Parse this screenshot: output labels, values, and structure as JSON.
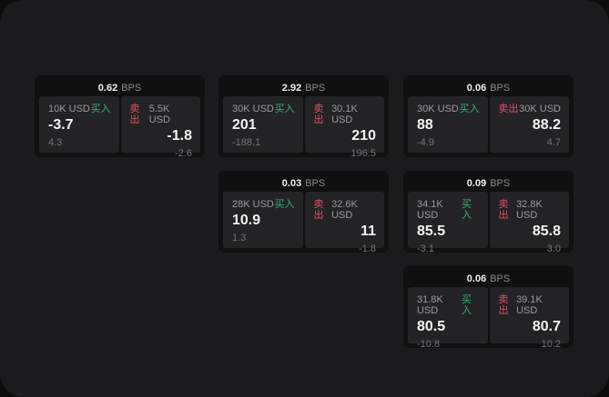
{
  "colors": {
    "page_bg": "#0c0c0c",
    "window_bg": "#1b1b1d",
    "card_bg": "#101011",
    "panel_bg": "#232325",
    "text_primary": "#f4f4f4",
    "text_secondary": "#9a9a9c",
    "text_muted": "#757577",
    "buy_green": "#31b573",
    "sell_red": "#dd5068"
  },
  "labels": {
    "buy": "买入",
    "sell": "卖出",
    "bps": "BPS"
  },
  "cards": [
    {
      "bps": "0.62",
      "buy": {
        "amount": "10K USD",
        "value": "-3.7",
        "sub": "4.3"
      },
      "sell": {
        "amount": "5.5K USD",
        "value": "-1.8",
        "sub": "-2.6"
      }
    },
    {
      "bps": "2.92",
      "buy": {
        "amount": "30K USD",
        "value": "201",
        "sub": "-188.1"
      },
      "sell": {
        "amount": "30.1K USD",
        "value": "210",
        "sub": "196.5"
      }
    },
    {
      "bps": "0.06",
      "buy": {
        "amount": "30K USD",
        "value": "88",
        "sub": "-4.9"
      },
      "sell": {
        "amount": "30K USD",
        "value": "88.2",
        "sub": "4.7"
      }
    },
    {
      "bps": "0.03",
      "buy": {
        "amount": "28K USD",
        "value": "10.9",
        "sub": "1.3"
      },
      "sell": {
        "amount": "32.6K USD",
        "value": "11",
        "sub": "-1.8"
      }
    },
    {
      "bps": "0.09",
      "buy": {
        "amount": "34.1K USD",
        "value": "85.5",
        "sub": "-3.1"
      },
      "sell": {
        "amount": "32.8K USD",
        "value": "85.8",
        "sub": "3.0"
      }
    },
    {
      "bps": "0.06",
      "buy": {
        "amount": "31.8K USD",
        "value": "80.5",
        "sub": "-10.8"
      },
      "sell": {
        "amount": "39.1K USD",
        "value": "80.7",
        "sub": "10.2"
      }
    }
  ]
}
